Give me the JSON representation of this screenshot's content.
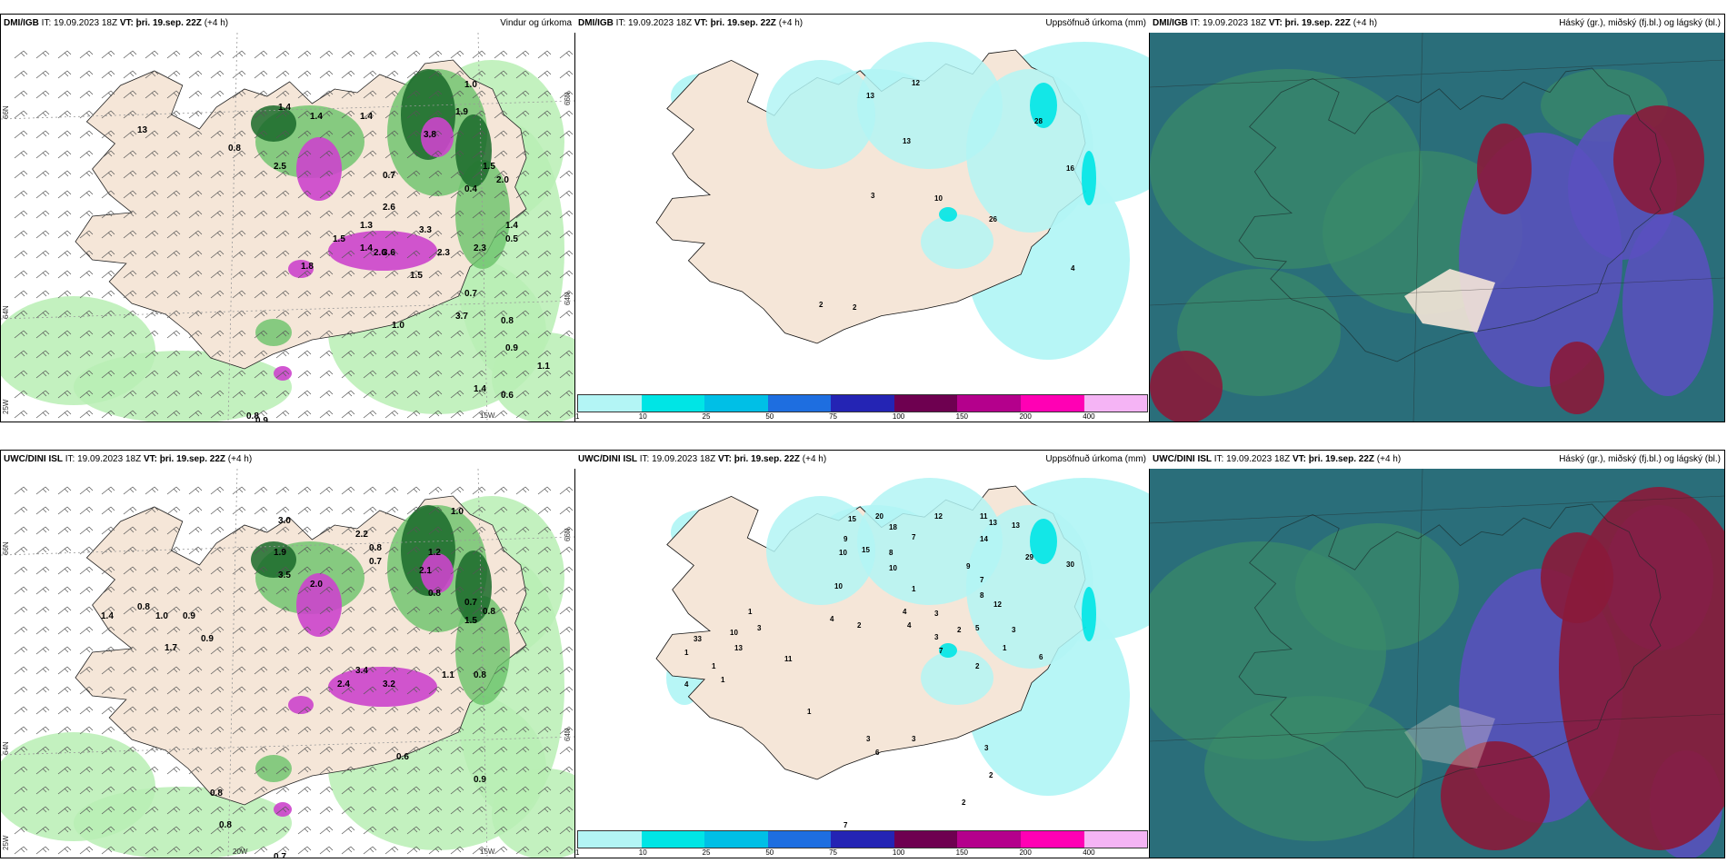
{
  "colors": {
    "land": "#f5e6d8",
    "wind_green_light": "#b8efb4",
    "wind_green_mid": "#6ac36a",
    "wind_green_dark": "#1a6a2a",
    "magenta": "#cc44cc",
    "precip_light": "#b3f5f5",
    "cloud_teal": "#2a6e7a",
    "cloud_green": "#3a8a6a",
    "cloud_blue": "#5a50c0",
    "cloud_red": "#8a1a3a"
  },
  "panels": {
    "top_wind": {
      "model": "DMI/IGB",
      "it": "IT: 19.09.2023 18Z",
      "vt": "VT: þri. 19.sep. 22Z",
      "lead": "(+4 h)",
      "title": "Vindur og úrkoma",
      "lon_labels": [
        "15W"
      ],
      "lat_labels": [
        "66N",
        "64N",
        "25W",
        "66N",
        "64N"
      ],
      "labels": [
        "13",
        "1.4",
        "1.4",
        "1.4",
        "2.5",
        "1.3",
        "0.7",
        "0.8",
        "3.8",
        "1.9",
        "1.0",
        "1.5",
        "2.6",
        "2.3",
        "3.3",
        "1.4",
        "2.0",
        "0.4",
        "1.4",
        "2.6",
        "1.5",
        "1.8",
        "0.5",
        "3.6",
        "2.3",
        "1.5",
        "3.7",
        "0.7",
        "0.8",
        "0.9",
        "1.1",
        "1.4",
        "1.0",
        "0.6",
        "0.8",
        "0.9"
      ]
    },
    "top_precip": {
      "model": "DMI/IGB",
      "it": "IT: 19.09.2023 18Z",
      "vt": "VT: þri. 19.sep. 22Z",
      "lead": "(+4 h)",
      "title": "Uppsöfnuð úrkoma (mm)",
      "labels": [
        "12",
        "13",
        "13",
        "28",
        "16",
        "3",
        "10",
        "26",
        "4",
        "2",
        "2"
      ],
      "colorbar": [
        "1",
        "10",
        "25",
        "50",
        "75",
        "100",
        "150",
        "200",
        "400"
      ]
    },
    "top_cloud": {
      "model": "DMI/IGB",
      "it": "IT: 19.09.2023 18Z",
      "vt": "VT: þri. 19.sep. 22Z",
      "lead": "(+4 h)",
      "title": "Háský (gr.), miðský (fj.bl.) og lágský (bl.)"
    },
    "bottom_wind": {
      "model": "UWC/DINI ISL",
      "it": "IT: 19.09.2023 18Z",
      "vt": "VT: þri. 19.sep. 22Z",
      "lead": "(+4 h)",
      "title": "",
      "lon_labels": [
        "20W",
        "15W"
      ],
      "lat_labels": [
        "66N",
        "64N",
        "25W",
        "66N",
        "64N"
      ],
      "labels": [
        "1.0",
        "3.0",
        "2.2",
        "0.8",
        "0.7",
        "1.9",
        "3.5",
        "2.0",
        "1.2",
        "2.1",
        "0.8",
        "0.7",
        "1.5",
        "0.8",
        "1.4",
        "0.8",
        "1.0",
        "0.9",
        "1.7",
        "0.9",
        "3.4",
        "2.4",
        "3.2",
        "1.1",
        "0.8",
        "0.6",
        "0.9",
        "0.8",
        "0.8",
        "0.7"
      ]
    },
    "bottom_precip": {
      "model": "UWC/DINI ISL",
      "it": "IT: 19.09.2023 18Z",
      "vt": "VT: þri. 19.sep. 22Z",
      "lead": "(+4 h)",
      "title": "Uppsöfnuð úrkoma (mm)",
      "labels": [
        "15",
        "20",
        "18",
        "12",
        "11",
        "13",
        "13",
        "7",
        "9",
        "10",
        "15",
        "8",
        "14",
        "29",
        "30",
        "10",
        "10",
        "1",
        "9",
        "7",
        "8",
        "3",
        "7",
        "4",
        "2",
        "4",
        "4",
        "3",
        "12",
        "5",
        "3",
        "2",
        "1",
        "2",
        "6",
        "11",
        "4",
        "10",
        "13",
        "33",
        "3",
        "1",
        "1",
        "1",
        "1",
        "1",
        "3",
        "6",
        "3",
        "3",
        "2",
        "2",
        "7"
      ],
      "colorbar": [
        "1",
        "10",
        "25",
        "50",
        "75",
        "100",
        "150",
        "200",
        "400"
      ]
    },
    "bottom_cloud": {
      "model": "UWC/DINI ISL",
      "it": "IT: 19.09.2023 18Z",
      "vt": "VT: þri. 19.sep. 22Z",
      "lead": "(+4 h)",
      "title": "Háský (gr.), miðský (fj.bl.) og lágský (bl.)"
    }
  },
  "colorbar_colors": [
    "#b3f5f5",
    "#00e5e5",
    "#00bfe6",
    "#1e6ee0",
    "#2424b4",
    "#6e0050",
    "#b4008c",
    "#ff00b4",
    "#f5b4f5"
  ]
}
